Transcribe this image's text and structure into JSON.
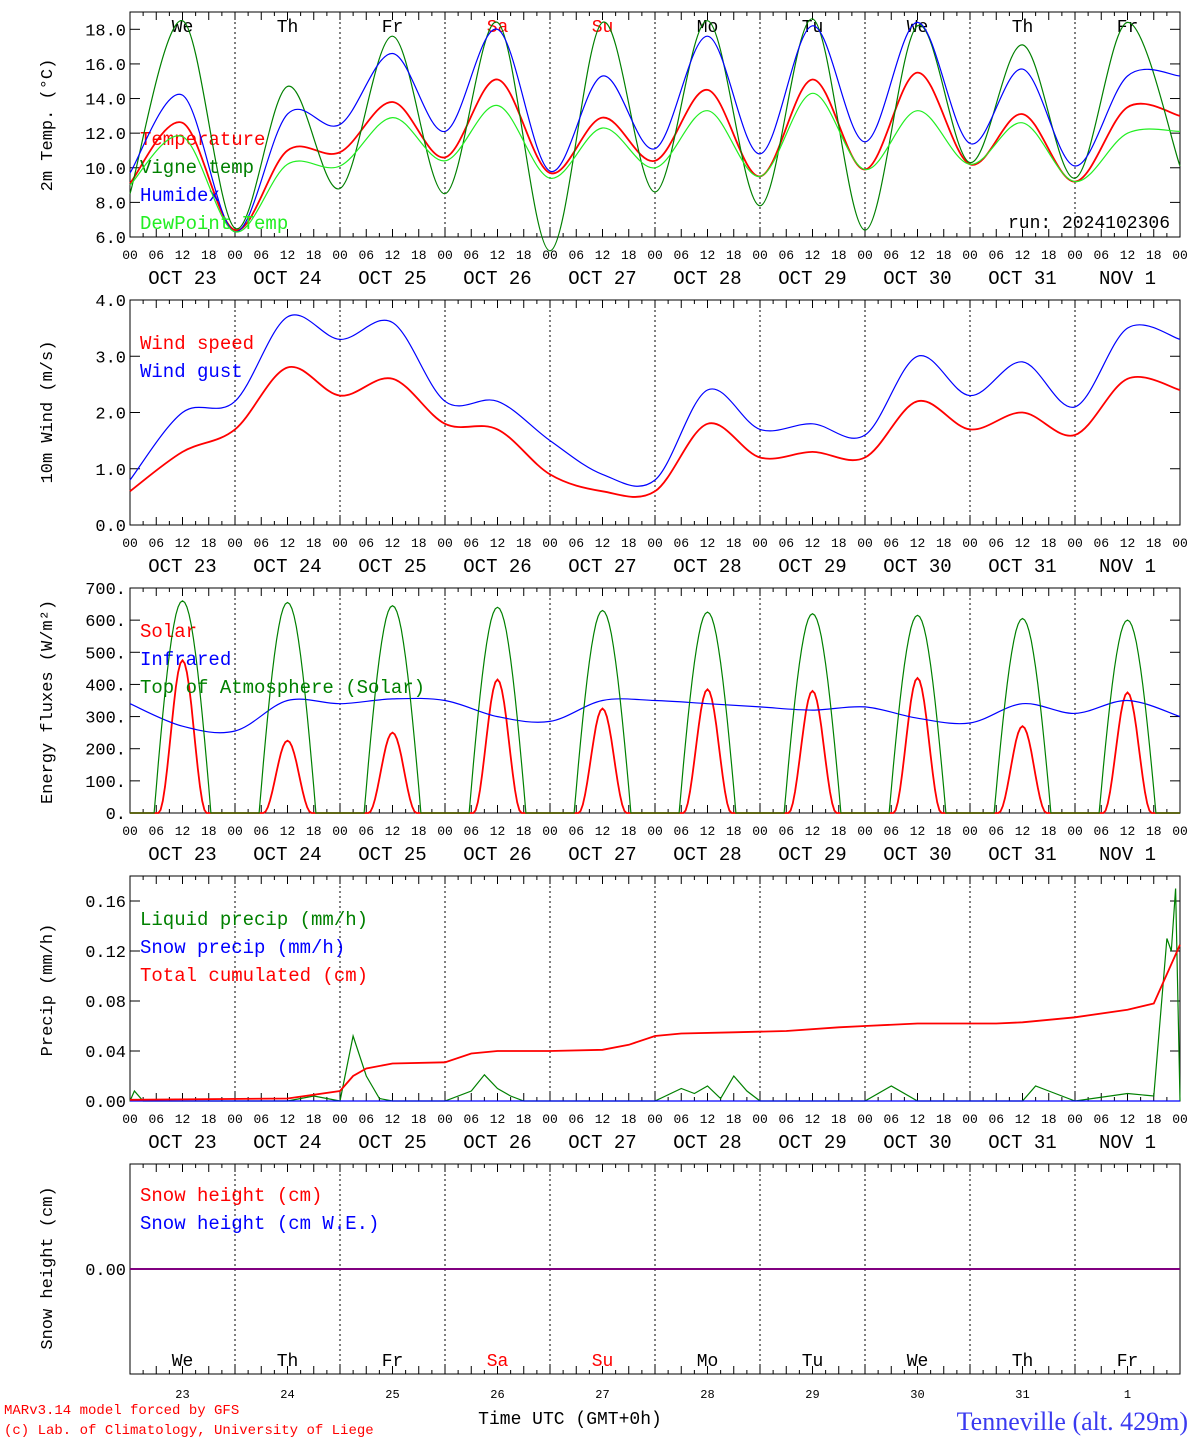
{
  "meta": {
    "run_label": "run: 2024102306",
    "x_axis_label": "Time UTC (GMT+0h)",
    "footer_line1": "MARv3.14 model forced by GFS",
    "footer_line2": "(c) Lab. of Climatology, University of Liege",
    "station": "Tenneville (alt. 429m)"
  },
  "colors": {
    "red": "#ff0000",
    "green": "#008000",
    "blue": "#0000ff",
    "lightgreen": "#22ee22",
    "weekend": "#ff0000",
    "purple": "#800080"
  },
  "days": {
    "weekday_labels": [
      "We",
      "Th",
      "Fr",
      "Sa",
      "Su",
      "Mo",
      "Tu",
      "We",
      "Th",
      "Fr"
    ],
    "weekend_flags": [
      false,
      false,
      false,
      true,
      true,
      false,
      false,
      false,
      false,
      false
    ],
    "date_labels": [
      "OCT 23",
      "OCT 24",
      "OCT 25",
      "OCT 26",
      "OCT 27",
      "OCT 28",
      "OCT 29",
      "OCT 30",
      "OCT 31",
      "NOV  1"
    ],
    "day_numbers": [
      "23",
      "24",
      "25",
      "26",
      "27",
      "28",
      "29",
      "30",
      "31",
      "1"
    ],
    "hour_ticks": [
      "00",
      "06",
      "12",
      "18"
    ],
    "final_tick": "00"
  },
  "chart_data": [
    {
      "type": "line",
      "panel": "temperature",
      "ylabel": "2m Temp. (°C)",
      "ylim": [
        6,
        19
      ],
      "yticks": [
        "6.0",
        "8.0",
        "10.0",
        "12.0",
        "14.0",
        "16.0",
        "18.0"
      ],
      "ytick_values": [
        6,
        8,
        10,
        12,
        14,
        16,
        18
      ],
      "x_unit": "hours since OCT 23 00 UTC",
      "x": [
        0,
        12,
        24,
        36,
        48,
        60,
        72,
        84,
        96,
        108,
        120,
        132,
        144,
        156,
        168,
        180,
        192,
        204,
        216,
        228,
        240
      ],
      "series": [
        {
          "name": "Temperature",
          "color": "red",
          "values": [
            9.1,
            12.6,
            6.4,
            11.0,
            10.9,
            13.8,
            10.6,
            15.1,
            9.7,
            12.9,
            10.4,
            14.5,
            9.5,
            15.1,
            9.9,
            15.5,
            10.2,
            13.1,
            9.2,
            13.5,
            13.0
          ]
        },
        {
          "name": "Vigne temp",
          "color": "green",
          "values": [
            8.5,
            18.5,
            6.5,
            14.7,
            8.8,
            17.6,
            8.5,
            18.4,
            5.2,
            18.4,
            8.6,
            18.5,
            7.8,
            18.6,
            6.4,
            18.2,
            10.3,
            17.1,
            9.4,
            18.4,
            10.1
          ]
        },
        {
          "name": "Humidex",
          "color": "blue",
          "values": [
            9.7,
            14.2,
            6.3,
            13.1,
            12.5,
            16.6,
            12.1,
            18.0,
            9.8,
            15.3,
            11.1,
            17.6,
            10.8,
            18.2,
            11.5,
            18.4,
            11.4,
            15.7,
            10.1,
            15.3,
            15.3
          ]
        },
        {
          "name": "DewPoint Temp",
          "color": "lightgreen",
          "values": [
            9.0,
            11.8,
            6.3,
            10.2,
            10.1,
            12.9,
            10.4,
            13.6,
            9.4,
            12.3,
            10.0,
            13.3,
            9.5,
            14.3,
            9.9,
            13.3,
            10.2,
            12.6,
            9.2,
            12.0,
            12.1
          ]
        }
      ]
    },
    {
      "type": "line",
      "panel": "wind",
      "ylabel": "10m Wind (m/s)",
      "ylim": [
        0,
        4
      ],
      "yticks": [
        "0.0",
        "1.0",
        "2.0",
        "3.0",
        "4.0"
      ],
      "ytick_values": [
        0,
        1,
        2,
        3,
        4
      ],
      "x_unit": "hours since OCT 23 00 UTC",
      "x": [
        0,
        12,
        24,
        36,
        48,
        60,
        72,
        84,
        96,
        108,
        120,
        132,
        144,
        156,
        168,
        180,
        192,
        204,
        216,
        228,
        240
      ],
      "series": [
        {
          "name": "Wind speed",
          "color": "red",
          "values": [
            0.6,
            1.3,
            1.7,
            2.8,
            2.3,
            2.6,
            1.8,
            1.7,
            0.9,
            0.6,
            0.6,
            1.8,
            1.2,
            1.3,
            1.2,
            2.2,
            1.7,
            2.0,
            1.6,
            2.6,
            2.4
          ]
        },
        {
          "name": "Wind gust",
          "color": "blue",
          "values": [
            0.8,
            2.0,
            2.2,
            3.7,
            3.3,
            3.6,
            2.2,
            2.2,
            1.5,
            0.9,
            0.8,
            2.4,
            1.7,
            1.8,
            1.6,
            3.0,
            2.3,
            2.9,
            2.1,
            3.5,
            3.3
          ]
        }
      ]
    },
    {
      "type": "line",
      "panel": "energy",
      "ylabel": "Energy fluxes (W/m²)",
      "ylim": [
        0,
        700
      ],
      "yticks": [
        "0.",
        "100.",
        "200.",
        "300.",
        "400.",
        "500.",
        "600.",
        "700."
      ],
      "ytick_values": [
        0,
        100,
        200,
        300,
        400,
        500,
        600,
        700
      ],
      "x_unit": "hours since OCT 23 00 UTC",
      "solar_peaks": [
        475,
        225,
        250,
        415,
        325,
        385,
        380,
        420,
        270,
        375
      ],
      "toa_peaks": [
        660,
        655,
        645,
        640,
        630,
        625,
        620,
        615,
        605,
        600
      ],
      "x": [
        0,
        12,
        24,
        36,
        48,
        60,
        72,
        84,
        96,
        108,
        120,
        132,
        144,
        156,
        168,
        180,
        192,
        204,
        216,
        228,
        240
      ],
      "series": [
        {
          "name": "Solar",
          "color": "red",
          "values": [
            0,
            475,
            0,
            225,
            0,
            250,
            0,
            415,
            0,
            325,
            0,
            385,
            0,
            380,
            0,
            420,
            0,
            270,
            0,
            375,
            0
          ]
        },
        {
          "name": "Infrared",
          "color": "blue",
          "values": [
            340,
            270,
            255,
            350,
            340,
            355,
            350,
            300,
            285,
            350,
            350,
            340,
            330,
            320,
            330,
            295,
            280,
            340,
            310,
            350,
            300
          ]
        },
        {
          "name": "Top of Atmosphere (Solar)",
          "color": "green",
          "values": [
            0,
            660,
            0,
            655,
            0,
            645,
            0,
            640,
            0,
            630,
            0,
            625,
            0,
            620,
            0,
            615,
            0,
            605,
            0,
            600,
            0
          ]
        }
      ]
    },
    {
      "type": "line",
      "panel": "precip",
      "ylabel": "Precip (mm/h)",
      "ylim": [
        0,
        0.18
      ],
      "yticks": [
        "0.00",
        "0.04",
        "0.08",
        "0.12",
        "0.16"
      ],
      "ytick_values": [
        0,
        0.04,
        0.08,
        0.12,
        0.16
      ],
      "x_unit": "hours since OCT 23 00 UTC",
      "series": [
        {
          "name": "Liquid precip (mm/h)",
          "color": "green",
          "x": [
            0,
            1,
            3,
            12,
            36,
            42,
            48,
            51,
            54,
            57,
            60,
            72,
            78,
            81,
            84,
            87,
            90,
            120,
            126,
            129,
            132,
            135,
            138,
            141,
            144,
            150,
            156,
            168,
            174,
            180,
            192,
            204,
            207,
            210,
            216,
            228,
            234,
            237,
            238,
            239,
            240
          ],
          "values": [
            0,
            0.008,
            0,
            0,
            0,
            0.004,
            0,
            0.052,
            0.02,
            0.002,
            0,
            0,
            0.008,
            0.021,
            0.01,
            0.004,
            0,
            0,
            0.01,
            0.006,
            0.012,
            0.002,
            0.02,
            0.008,
            0,
            0,
            0,
            0,
            0.012,
            0,
            0,
            0,
            0.012,
            0.008,
            0,
            0.006,
            0.004,
            0.13,
            0.12,
            0.17,
            0
          ]
        },
        {
          "name": "Snow precip (mm/h)",
          "color": "blue",
          "x": [
            0,
            240
          ],
          "values": [
            0,
            0
          ]
        },
        {
          "name": "Total cumulated (cm)",
          "color": "red",
          "x": [
            0,
            36,
            48,
            51,
            54,
            60,
            72,
            78,
            84,
            90,
            96,
            108,
            114,
            120,
            126,
            138,
            150,
            162,
            168,
            180,
            192,
            198,
            204,
            216,
            228,
            234,
            240
          ],
          "values": [
            0.001,
            0.002,
            0.008,
            0.02,
            0.026,
            0.03,
            0.031,
            0.038,
            0.04,
            0.04,
            0.04,
            0.041,
            0.045,
            0.052,
            0.054,
            0.055,
            0.056,
            0.059,
            0.06,
            0.062,
            0.062,
            0.062,
            0.063,
            0.067,
            0.073,
            0.078,
            0.125
          ]
        }
      ]
    },
    {
      "type": "line",
      "panel": "snow",
      "ylabel": "Snow height (cm)",
      "ylim": [
        -0.5,
        0.5
      ],
      "yticks": [
        "0.00"
      ],
      "ytick_values": [
        0
      ],
      "x_unit": "hours since OCT 23 00 UTC",
      "x": [
        0,
        240
      ],
      "series": [
        {
          "name": "Snow height (cm)",
          "color": "red",
          "values": [
            0,
            0
          ]
        },
        {
          "name": "Snow height (cm W.E.)",
          "color": "blue",
          "values": [
            0,
            0
          ]
        }
      ]
    }
  ]
}
